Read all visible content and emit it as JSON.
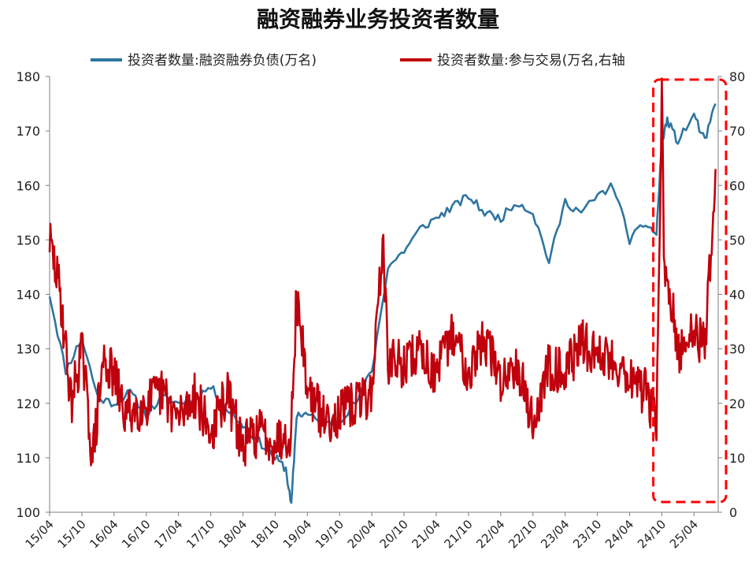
{
  "chart_data": {
    "type": "line",
    "title": "融资融券业务投资者数量",
    "series": [
      {
        "name": "投资者数量:融资融券负债(万名)",
        "axis": "left",
        "color": "#2e75a0",
        "x": [
          "15/04",
          "15/07",
          "15/10",
          "16/01",
          "16/04",
          "16/07",
          "16/10",
          "17/01",
          "17/04",
          "17/07",
          "17/10",
          "18/01",
          "18/04",
          "18/07",
          "18/10",
          "18/12",
          "19/01",
          "19/02",
          "19/04",
          "19/07",
          "19/10",
          "20/01",
          "20/04",
          "20/07",
          "20/10",
          "21/01",
          "21/04",
          "21/07",
          "21/10",
          "22/01",
          "22/04",
          "22/07",
          "22/10",
          "23/01",
          "23/04",
          "23/07",
          "23/10",
          "24/01",
          "24/04",
          "24/07",
          "24/09",
          "24/10",
          "24/11",
          "25/01",
          "25/04",
          "25/06",
          "25/08"
        ],
        "values": [
          140,
          126,
          132,
          121,
          120,
          122,
          118,
          121,
          120,
          121,
          123,
          119,
          116,
          113,
          110,
          108,
          101,
          118,
          118,
          116,
          117,
          120,
          126,
          145,
          148,
          152,
          154,
          156,
          158,
          155,
          154,
          157,
          155,
          146,
          157,
          155,
          158,
          160,
          150,
          153,
          151,
          168,
          172,
          168,
          173,
          168,
          175
        ]
      },
      {
        "name": "投资者数量:参与交易(万名,右轴",
        "axis": "right",
        "color": "#c0000c",
        "x": [
          "15/04",
          "15/05",
          "15/06",
          "15/08",
          "15/10",
          "15/12",
          "16/02",
          "16/04",
          "16/06",
          "16/10",
          "17/01",
          "17/04",
          "17/07",
          "17/10",
          "18/01",
          "18/04",
          "18/07",
          "18/10",
          "19/01",
          "19/02",
          "19/04",
          "19/07",
          "19/10",
          "20/01",
          "20/04",
          "20/06",
          "20/07",
          "20/10",
          "21/01",
          "21/04",
          "21/07",
          "21/10",
          "22/01",
          "22/04",
          "22/07",
          "22/10",
          "23/01",
          "23/04",
          "23/07",
          "23/10",
          "24/01",
          "24/04",
          "24/07",
          "24/09",
          "24/10",
          "24/10b",
          "24/12",
          "25/01",
          "25/04",
          "25/06",
          "25/08"
        ],
        "values": [
          50,
          45,
          40,
          20,
          30,
          10,
          28,
          25,
          18,
          20,
          22,
          17,
          22,
          14,
          22,
          12,
          15,
          13,
          15,
          40,
          23,
          17,
          18,
          20,
          22,
          50,
          28,
          27,
          30,
          25,
          33,
          26,
          32,
          24,
          28,
          16,
          27,
          26,
          31,
          29,
          28,
          25,
          22,
          17,
          76,
          42,
          37,
          28,
          34,
          30,
          63
        ],
        "note": "approximate"
      }
    ],
    "x_ticks": [
      "15/04",
      "15/10",
      "16/04",
      "16/10",
      "17/04",
      "17/10",
      "18/04",
      "18/10",
      "19/04",
      "19/10",
      "20/04",
      "20/10",
      "21/04",
      "21/10",
      "22/04",
      "22/10",
      "23/04",
      "23/10",
      "24/04",
      "24/10",
      "25/04"
    ],
    "ylim_left": [
      100,
      180
    ],
    "yticks_left": [
      100,
      110,
      120,
      130,
      140,
      150,
      160,
      170,
      180
    ],
    "ylim_right": [
      0,
      80
    ],
    "yticks_right": [
      0,
      10,
      20,
      30,
      40,
      50,
      60,
      70,
      80
    ],
    "grid": false,
    "legend_position": "top",
    "highlight_box": {
      "from": "24/09",
      "to": "25/08",
      "style": "dashed",
      "color": "#ff0000"
    }
  }
}
